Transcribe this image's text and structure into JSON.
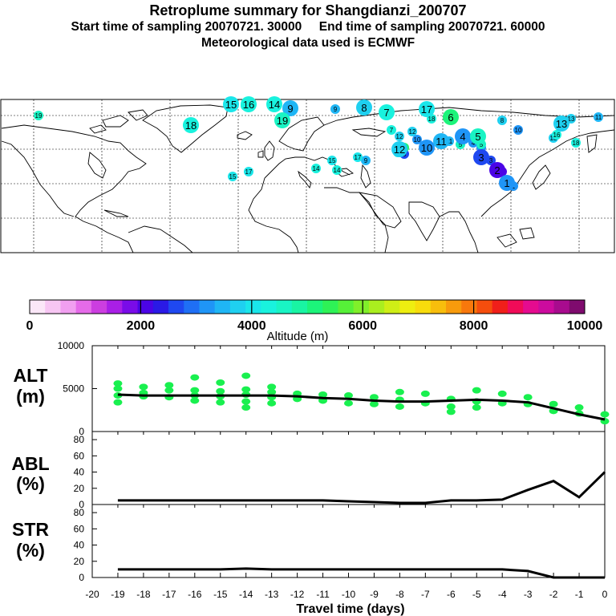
{
  "header": {
    "title": "Retroplume summary for Shangdianzi_200707",
    "start_label": "Start time of sampling 20070721. 30000",
    "end_label": "End time of sampling 20070721. 60000",
    "met_label": "Meteorological data used is ECMWF"
  },
  "colorbar": {
    "colors": [
      "#fbe7f8",
      "#f7c6f3",
      "#f19ff0",
      "#e56be9",
      "#cc3ee0",
      "#a91fe6",
      "#7a0ce8",
      "#4b04e6",
      "#2a1ae6",
      "#1f48f0",
      "#1f6ff5",
      "#1f95f7",
      "#1fb6f5",
      "#1fd0f0",
      "#1ae6ea",
      "#19f2de",
      "#19f4c4",
      "#19f5a3",
      "#1cf47a",
      "#2ef256",
      "#56f038",
      "#80ef2a",
      "#aaee1f",
      "#cfee16",
      "#eeee10",
      "#f8dc0c",
      "#f8be0c",
      "#f89b0c",
      "#f8780c",
      "#f54d0d",
      "#f01f1a",
      "#f00b58",
      "#e50b8f",
      "#cc0b9e",
      "#a80b8e",
      "#7f0b6e"
    ],
    "ticks": [
      "0",
      "2000",
      "4000",
      "6000",
      "8000",
      "10000"
    ],
    "label": "Altitude (m)"
  },
  "map": {
    "plumes": [
      {
        "label": "1",
        "alt": 3300
      },
      {
        "label": "2",
        "alt": 2000
      },
      {
        "label": "3",
        "alt": 2500
      },
      {
        "label": "4",
        "alt": 3300
      },
      {
        "label": "5",
        "alt": 4600
      },
      {
        "label": "6",
        "alt": 5200
      },
      {
        "label": "7",
        "alt": 4300
      },
      {
        "label": "8",
        "alt": 3800
      },
      {
        "label": "9",
        "alt": 3500
      },
      {
        "label": "10",
        "alt": 3200
      },
      {
        "label": "11",
        "alt": 3600
      },
      {
        "label": "12",
        "alt": 3700
      },
      {
        "label": "13",
        "alt": 3800
      },
      {
        "label": "14",
        "alt": 4200
      },
      {
        "label": "15",
        "alt": 4100
      },
      {
        "label": "16",
        "alt": 4200
      },
      {
        "label": "17",
        "alt": 4000
      },
      {
        "label": "18",
        "alt": 4300
      },
      {
        "label": "19",
        "alt": 4500
      }
    ]
  },
  "chart_data": [
    {
      "type": "line",
      "name": "ALT",
      "ylabel": "ALT (m)",
      "ylabel_line1": "ALT",
      "ylabel_line2": "(m)",
      "ylim": [
        0,
        10000
      ],
      "yticks": [
        "0",
        "5000",
        "10000"
      ],
      "x": [
        0,
        -1,
        -2,
        -3,
        -4,
        -5,
        -6,
        -7,
        -8,
        -9,
        -10,
        -11,
        -12,
        -13,
        -14,
        -15,
        -16,
        -17,
        -18,
        -19
      ],
      "values": [
        1400,
        2000,
        2700,
        3400,
        3600,
        3700,
        3600,
        3500,
        3500,
        3600,
        3800,
        3900,
        4100,
        4200,
        4200,
        4200,
        4200,
        4200,
        4200,
        4300
      ],
      "scatter": [
        [
          -19,
          5600
        ],
        [
          -19,
          5000
        ],
        [
          -19,
          4200
        ],
        [
          -19,
          3400
        ],
        [
          -18,
          5200
        ],
        [
          -18,
          4500
        ],
        [
          -18,
          4100
        ],
        [
          -17,
          5400
        ],
        [
          -17,
          4800
        ],
        [
          -17,
          4000
        ],
        [
          -16,
          6300
        ],
        [
          -16,
          4800
        ],
        [
          -16,
          4200
        ],
        [
          -16,
          3600
        ],
        [
          -15,
          5700
        ],
        [
          -15,
          4700
        ],
        [
          -15,
          4100
        ],
        [
          -15,
          3400
        ],
        [
          -14,
          6500
        ],
        [
          -14,
          4900
        ],
        [
          -14,
          4300
        ],
        [
          -14,
          3500
        ],
        [
          -14,
          2800
        ],
        [
          -13,
          5200
        ],
        [
          -13,
          4600
        ],
        [
          -13,
          4000
        ],
        [
          -13,
          3300
        ],
        [
          -12,
          4400
        ],
        [
          -12,
          3800
        ],
        [
          -11,
          4300
        ],
        [
          -11,
          3600
        ],
        [
          -10,
          4200
        ],
        [
          -10,
          3300
        ],
        [
          -9,
          4000
        ],
        [
          -9,
          3200
        ],
        [
          -8,
          4600
        ],
        [
          -8,
          3700
        ],
        [
          -8,
          2900
        ],
        [
          -7,
          4400
        ],
        [
          -7,
          3300
        ],
        [
          -6,
          3800
        ],
        [
          -6,
          2900
        ],
        [
          -6,
          2300
        ],
        [
          -5,
          4800
        ],
        [
          -5,
          3500
        ],
        [
          -5,
          2800
        ],
        [
          -4,
          4400
        ],
        [
          -4,
          3300
        ],
        [
          -3,
          4000
        ],
        [
          -3,
          3200
        ],
        [
          -2,
          3200
        ],
        [
          -2,
          2400
        ],
        [
          -1,
          2800
        ],
        [
          -1,
          2100
        ],
        [
          0,
          2000
        ],
        [
          0,
          1200
        ]
      ]
    },
    {
      "type": "line",
      "name": "ABL",
      "ylabel": "ABL (%)",
      "ylabel_line1": "ABL",
      "ylabel_line2": "(%)",
      "ylim": [
        0,
        90
      ],
      "yticks": [
        "0",
        "20",
        "40",
        "60",
        "80"
      ],
      "x": [
        0,
        -1,
        -2,
        -3,
        -4,
        -5,
        -6,
        -7,
        -8,
        -9,
        -10,
        -11,
        -12,
        -13,
        -14,
        -15,
        -16,
        -17,
        -18,
        -19
      ],
      "values": [
        40,
        9,
        29,
        18,
        6,
        5,
        5,
        2,
        2,
        3,
        4,
        5,
        5,
        5,
        5,
        5,
        5,
        5,
        5,
        5
      ]
    },
    {
      "type": "line",
      "name": "STR",
      "ylabel": "STR (%)",
      "ylabel_line1": "STR",
      "ylabel_line2": "(%)",
      "ylim": [
        0,
        90
      ],
      "yticks": [
        "0",
        "20",
        "40",
        "60",
        "80"
      ],
      "x": [
        0,
        -1,
        -2,
        -3,
        -4,
        -5,
        -6,
        -7,
        -8,
        -9,
        -10,
        -11,
        -12,
        -13,
        -14,
        -15,
        -16,
        -17,
        -18,
        -19
      ],
      "values": [
        0,
        0,
        0,
        8,
        10,
        10,
        10,
        10,
        10,
        10,
        10,
        10,
        10,
        10,
        11,
        10,
        10,
        10,
        10,
        10
      ]
    }
  ],
  "xaxis": {
    "label": "Travel time (days)",
    "ticks": [
      "-20",
      "-19",
      "-18",
      "-17",
      "-16",
      "-15",
      "-14",
      "-13",
      "-12",
      "-11",
      "-10",
      "-9",
      "-8",
      "-7",
      "-6",
      "-5",
      "-4",
      "-3",
      "-2",
      "-1",
      "0"
    ]
  }
}
